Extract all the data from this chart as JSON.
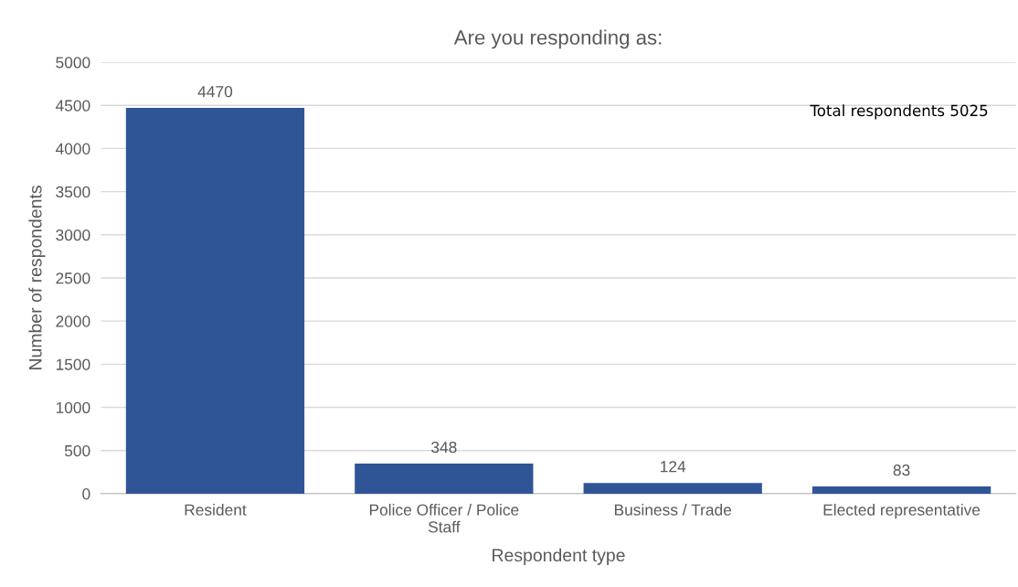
{
  "chart_data": {
    "type": "bar",
    "title": "Are you responding as:",
    "xlabel": "Respondent type",
    "ylabel": "Number of respondents",
    "categories": [
      "Resident",
      "Police Officer / Police Staff",
      "Business / Trade",
      "Elected representative"
    ],
    "values": [
      4470,
      348,
      124,
      83
    ],
    "color": "#2f5597",
    "ylim": [
      0,
      5000
    ],
    "yticks": [
      0,
      500,
      1000,
      1500,
      2000,
      2500,
      3000,
      3500,
      4000,
      4500,
      5000
    ],
    "grid": "y",
    "data_labels": true,
    "legend": false,
    "annotations": [
      "Total respondents 5025"
    ]
  }
}
